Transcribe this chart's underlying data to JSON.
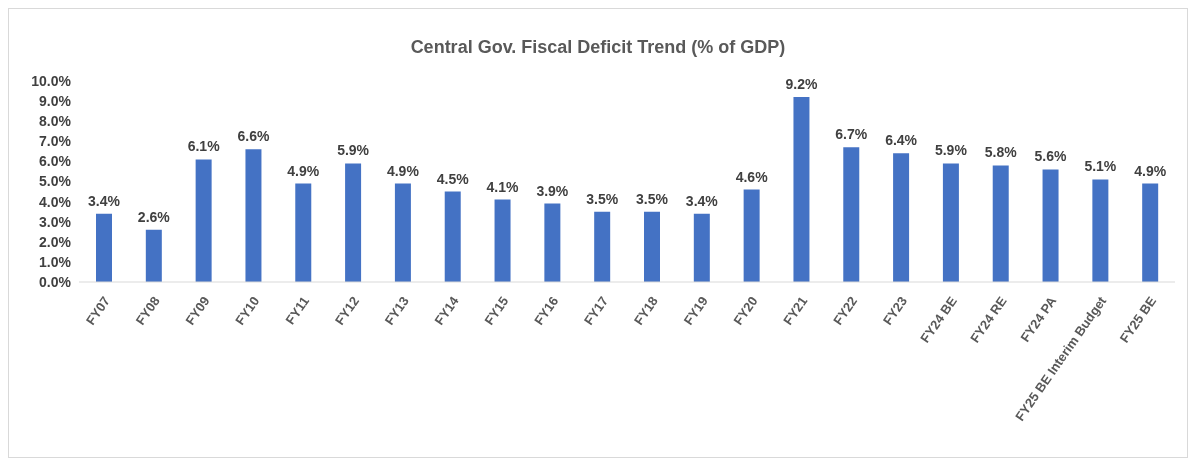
{
  "chart_data": {
    "type": "bar",
    "title": "Central Gov. Fiscal Deficit Trend (% of GDP)",
    "categories": [
      "FY07",
      "FY08",
      "FY09",
      "FY10",
      "FY11",
      "FY12",
      "FY13",
      "FY14",
      "FY15",
      "FY16",
      "FY17",
      "FY18",
      "FY19",
      "FY20",
      "FY21",
      "FY22",
      "FY23",
      "FY24 BE",
      "FY24 RE",
      "FY24 PA",
      "FY25 BE Interim Budget",
      "FY25 BE"
    ],
    "values": [
      3.4,
      2.6,
      6.1,
      6.6,
      4.9,
      5.9,
      4.9,
      4.5,
      4.1,
      3.9,
      3.5,
      3.5,
      3.4,
      4.6,
      9.2,
      6.7,
      6.4,
      5.9,
      5.8,
      5.6,
      5.1,
      4.9
    ],
    "value_labels": [
      "3.4%",
      "2.6%",
      "6.1%",
      "6.6%",
      "4.9%",
      "5.9%",
      "4.9%",
      "4.5%",
      "4.1%",
      "3.9%",
      "3.5%",
      "3.5%",
      "3.4%",
      "4.6%",
      "9.2%",
      "6.7%",
      "6.4%",
      "5.9%",
      "5.8%",
      "5.6%",
      "5.1%",
      "4.9%"
    ],
    "color": "#4472c4",
    "ylim": [
      0,
      10
    ],
    "yticks": [
      {
        "value": 0,
        "label": "0.0%"
      },
      {
        "value": 1,
        "label": "1.0%"
      },
      {
        "value": 2,
        "label": "2.0%"
      },
      {
        "value": 3,
        "label": "3.0%"
      },
      {
        "value": 4,
        "label": "4.0%"
      },
      {
        "value": 5,
        "label": "5.0%"
      },
      {
        "value": 6,
        "label": "6.0%"
      },
      {
        "value": 7,
        "label": "7.0%"
      },
      {
        "value": 8,
        "label": "8.0%"
      },
      {
        "value": 9,
        "label": "9.0%"
      },
      {
        "value": 10,
        "label": "10.0%"
      }
    ],
    "grid": false
  }
}
